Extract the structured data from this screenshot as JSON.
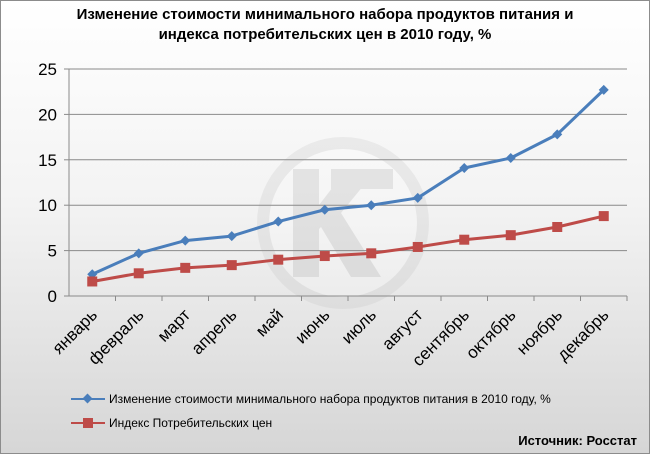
{
  "chart_data": {
    "type": "line",
    "title": "Изменение стоимости минимального набора продуктов питания и индекса потребительских цен в 2010 году, %",
    "title_lines": [
      "Изменение стоимости минимального набора продуктов питания и",
      "индекса потребительских цен в 2010 году, %"
    ],
    "categories": [
      "январь",
      "февраль",
      "март",
      "апрель",
      "май",
      "июнь",
      "июль",
      "август",
      "сентябрь",
      "октябрь",
      "ноябрь",
      "декабрь"
    ],
    "series": [
      {
        "name": "Изменение стоимости минимального набора продуктов питания в 2010 году, %",
        "color": "#4a7ebb",
        "marker": "diamond",
        "values": [
          2.4,
          4.7,
          6.1,
          6.6,
          8.2,
          9.5,
          10.0,
          10.8,
          14.1,
          15.2,
          17.8,
          22.7
        ]
      },
      {
        "name": "Индекс Потребительских цен",
        "color": "#be4b48",
        "marker": "square",
        "values": [
          1.6,
          2.5,
          3.1,
          3.4,
          4.0,
          4.4,
          4.7,
          5.4,
          6.2,
          6.7,
          7.6,
          8.8
        ]
      }
    ],
    "ylim": [
      0,
      25
    ],
    "yticks": [
      0,
      5,
      10,
      15,
      20,
      25
    ],
    "grid": "horizontal",
    "legend": "bottom"
  },
  "source": "Источник:  Росстат"
}
